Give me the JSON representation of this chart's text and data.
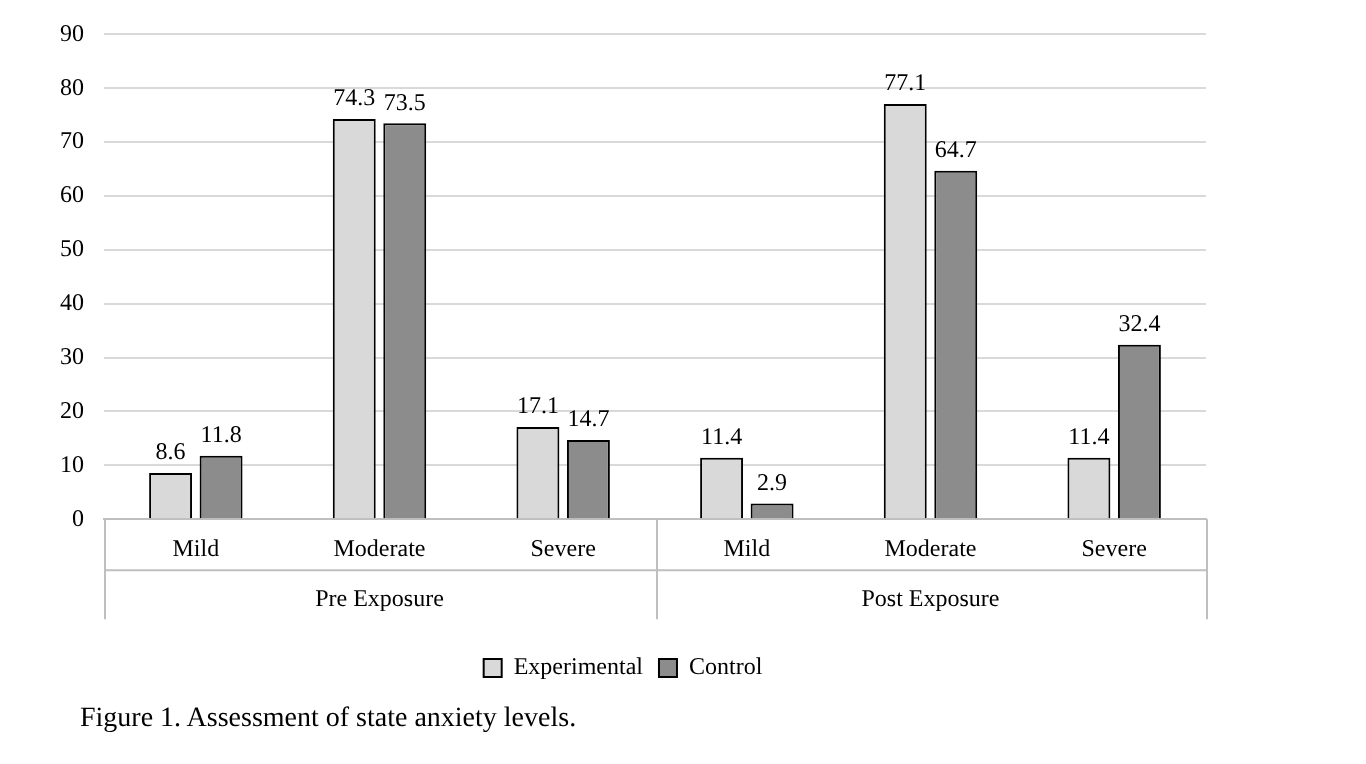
{
  "chart_data": {
    "type": "bar",
    "categories": [
      "Mild",
      "Moderate",
      "Severe",
      "Mild",
      "Moderate",
      "Severe"
    ],
    "series": [
      {
        "name": "Experimental",
        "color": "#d9d9d9",
        "values": [
          8.6,
          74.3,
          17.1,
          11.4,
          77.1,
          11.4
        ]
      },
      {
        "name": "Control",
        "color": "#8c8c8c",
        "values": [
          11.8,
          73.5,
          14.7,
          2.9,
          64.7,
          32.4
        ]
      }
    ],
    "ylim": [
      0,
      90
    ],
    "yticks": [
      0,
      10,
      20,
      30,
      40,
      50,
      60,
      70,
      80,
      90
    ],
    "grid": "y",
    "legend": "bottom",
    "data_labels": true,
    "annotations": [
      "Pre Exposure",
      "Post Exposure",
      "Figure 1. Assessment of state anxiety levels."
    ]
  }
}
